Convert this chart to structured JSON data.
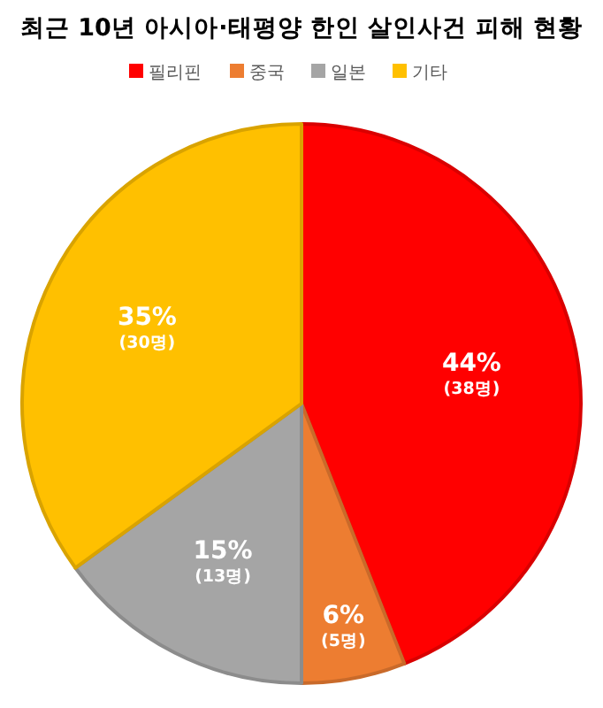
{
  "chart_data": {
    "type": "pie",
    "title": "최근 10년 아시아·태평양 한인 살인사건 피해 현황",
    "categories": [
      "필리핀",
      "중국",
      "일본",
      "기타"
    ],
    "values": [
      44,
      6,
      15,
      35
    ],
    "colors": [
      "#ff0000",
      "#ed7d31",
      "#a5a5a5",
      "#ffc000"
    ],
    "value_labels": [
      "44%\n(38명)",
      "6%\n(5명)",
      "15%\n(13명)",
      "35%\n(30명)"
    ],
    "legend": "top"
  }
}
